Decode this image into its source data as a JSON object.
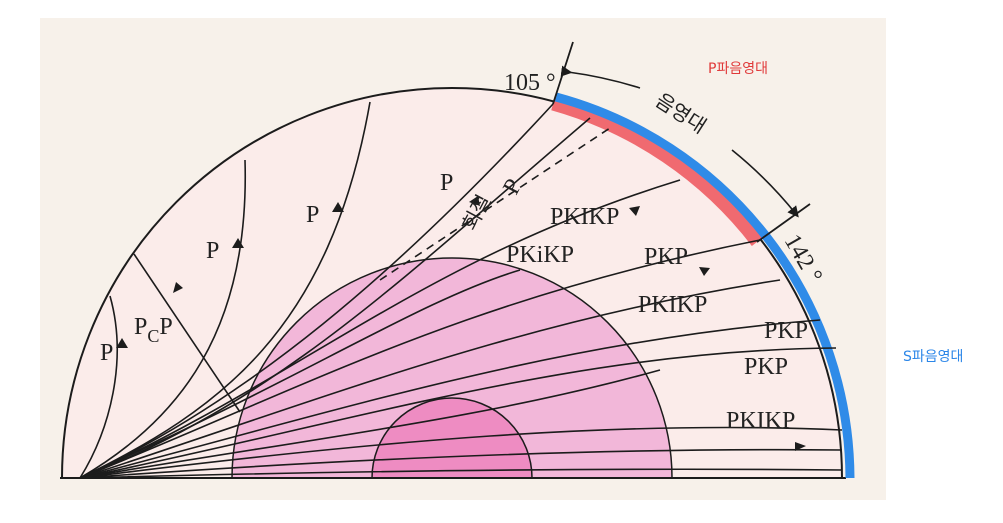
{
  "angles": {
    "start": "105 °",
    "end": "142 °"
  },
  "shadow_zone_label": "음영대",
  "zone_labels": {
    "p_shadow": "P파음영대",
    "s_shadow": "S파음영대"
  },
  "ray_labels": {
    "p1": "P",
    "p2": "P",
    "p3": "P",
    "p4": "P",
    "pcp": "P",
    "pcp_sub": "C",
    "pcp_tail": "P",
    "refracted_word": "회절",
    "refracted_p": "P",
    "pkikp1": "PKIKP",
    "pkikp2": "PKIKP",
    "pkikp3": "PKIKP",
    "pkikp_lower": "PKiKP",
    "pkp1": "PKP",
    "pkp2": "PKP",
    "pkp3": "PKP"
  },
  "colors": {
    "mantle": "#fbecea",
    "outer_core": "#f2b7d9",
    "inner_core": "#ee8cc2",
    "p_shadow_band": "#f06a70",
    "s_shadow_band": "#2f8be8",
    "rays": "#1c1c1c"
  }
}
